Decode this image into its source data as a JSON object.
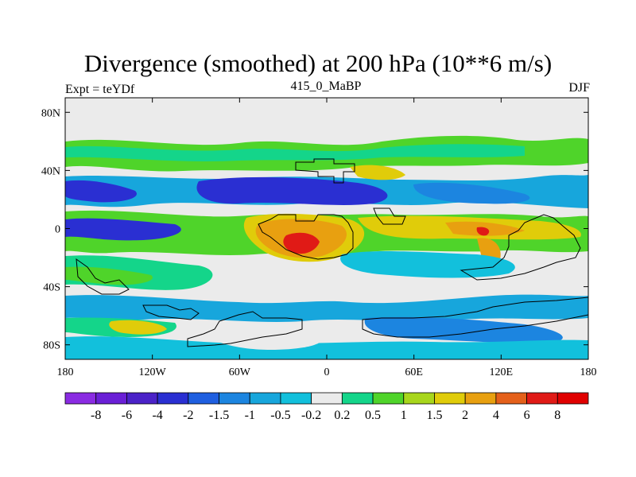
{
  "figure": {
    "title": "Divergence (smoothed) at 200 hPa (10**6 m/s)",
    "left_label": "Expt = teYDf",
    "center_label": "415_0_MaBP",
    "right_label": "DJF"
  },
  "axes": {
    "lat_labels": [
      "80N",
      "40N",
      "0",
      "40S",
      "80S"
    ],
    "lat_values": [
      80,
      40,
      0,
      -40,
      -80
    ],
    "lon_labels": [
      "180",
      "120W",
      "60W",
      "0",
      "60E",
      "120E",
      "180"
    ],
    "lon_values": [
      -180,
      -120,
      -60,
      0,
      60,
      120,
      180
    ],
    "lon_range": [
      -180,
      180
    ],
    "lat_range": [
      -90,
      90
    ]
  },
  "colorbar": {
    "labels": [
      "-8",
      "-6",
      "-4",
      "-2",
      "-1.5",
      "-1",
      "-0.5",
      "-0.2",
      "0.2",
      "0.5",
      "1",
      "1.5",
      "2",
      "4",
      "6",
      "8"
    ],
    "colors": [
      "#8a2be2",
      "#6a1fd6",
      "#4b22c8",
      "#2a2fd2",
      "#1f5fe0",
      "#1c85e0",
      "#17a6dc",
      "#12c0dc",
      "#ebebeb",
      "#14d58a",
      "#4fd42a",
      "#a8d61c",
      "#e0cc0a",
      "#e8a010",
      "#e4601a",
      "#e01a16",
      "#e00000"
    ]
  },
  "fields": {
    "colors": {
      "neutral": "#ebebeb",
      "cyan": "#12c0dc",
      "lightblue": "#17a6dc",
      "blue": "#1c85e0",
      "darkblue": "#2a2fd2",
      "green": "#14d58a",
      "ygreen": "#4fd42a",
      "yellow": "#e0cc0a",
      "orange": "#e8a010",
      "red": "#e01a16"
    }
  }
}
